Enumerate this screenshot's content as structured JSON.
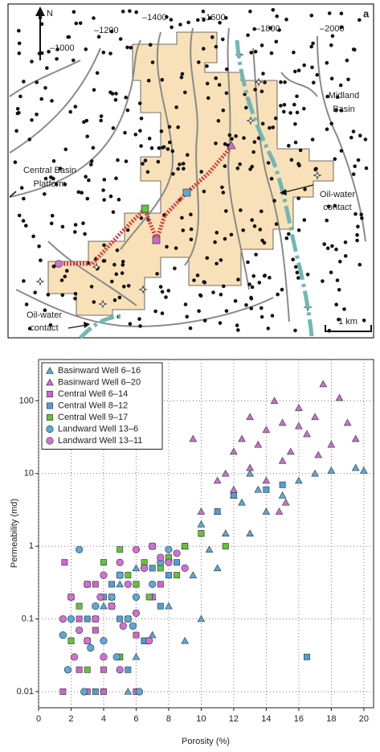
{
  "map": {
    "panel": "a",
    "north": "N",
    "contours": [
      "–1000",
      "–1200",
      "–1400",
      "–1600",
      "–1800",
      "–2000"
    ],
    "midland_basin": [
      "Midland",
      "Basin"
    ],
    "central_basin_platform": [
      "Central Basin",
      "Platform"
    ],
    "oil_water_contact_right": [
      "Oil-water",
      "contact"
    ],
    "oil_water_contact_left": [
      "Oil-water",
      "contact"
    ],
    "scale": "1 km"
  },
  "chart_data": {
    "type": "scatter",
    "panel": "b",
    "x_label": "Porosity (%)",
    "y_label": "Permeability (md)",
    "xlim": [
      0,
      20.6
    ],
    "ylim": [
      0.006,
      370
    ],
    "log_y": true,
    "grid": true,
    "legend": "upper left",
    "xticks": [
      0,
      2,
      4,
      6,
      8,
      10,
      12,
      14,
      16,
      18,
      20
    ],
    "yticks": [
      0.01,
      0.1,
      1,
      10,
      100
    ],
    "series": [
      {
        "name": "Basinward Well 6–16",
        "color": "#5aa8d6",
        "marker": "triangle",
        "x": [
          4,
          5,
          6,
          7,
          8,
          9,
          9.5,
          10,
          10.5,
          11,
          11.5,
          12,
          12.5,
          13,
          13.5,
          14,
          15,
          16,
          17,
          18,
          19.5,
          20,
          8,
          9,
          10,
          6,
          7,
          5.5,
          11,
          13
        ],
        "values": [
          0.15,
          0.3,
          0.5,
          0.2,
          0.7,
          1,
          0.4,
          2,
          0.9,
          3,
          1.5,
          5,
          4,
          10,
          6,
          3,
          5,
          8,
          10,
          11,
          12,
          11,
          0.15,
          0.05,
          0.1,
          0.03,
          0.06,
          0.01,
          0.5,
          1.5
        ]
      },
      {
        "name": "Basinward Well 6–20",
        "color": "#c96fcc",
        "marker": "triangle",
        "x": [
          10,
          11,
          12,
          12.5,
          13,
          13.5,
          14,
          14.5,
          15,
          15.5,
          16,
          16.5,
          17,
          17.5,
          18,
          18.5,
          19,
          19.5,
          13,
          14,
          15,
          16,
          12,
          11.5,
          9.5,
          14.8,
          17.2,
          15.2
        ],
        "values": [
          3,
          8,
          20,
          30,
          60,
          25,
          40,
          100,
          50,
          20,
          80,
          35,
          60,
          170,
          25,
          110,
          50,
          30,
          12,
          8,
          15,
          45,
          6,
          10,
          30,
          3,
          18,
          4
        ]
      },
      {
        "name": "Central Well 6–14",
        "color": "#cc66cc",
        "marker": "square",
        "x": [
          1.6,
          2,
          2.5,
          3,
          3.5,
          4,
          4.5,
          5,
          5.5,
          6,
          6.5,
          7,
          3,
          4,
          5,
          2.5,
          3.5,
          1.5,
          6,
          7.5
        ],
        "values": [
          0.6,
          0.2,
          0.1,
          0.05,
          0.3,
          0.02,
          0.15,
          0.4,
          0.1,
          0.01,
          0.05,
          0.2,
          0.01,
          0.01,
          0.03,
          0.02,
          0.07,
          0.01,
          0.06,
          0.3
        ]
      },
      {
        "name": "Central Well 8–12",
        "color": "#4f9fd3",
        "marker": "square",
        "x": [
          2,
          3,
          4,
          5,
          6,
          7,
          8,
          9,
          10,
          11,
          12,
          14,
          15,
          16.5,
          3.5,
          5.5,
          7.5,
          6.5,
          4.5,
          8.5
        ],
        "values": [
          0.05,
          0.1,
          0.2,
          0.1,
          0.3,
          0.5,
          0.4,
          1,
          1.5,
          3,
          5,
          6,
          7,
          0.03,
          0.01,
          0.02,
          0.15,
          0.05,
          0.3,
          0.6
        ]
      },
      {
        "name": "Central Well 9–17",
        "color": "#66c23a",
        "marker": "square",
        "x": [
          2,
          2.5,
          3,
          3.5,
          4,
          4.5,
          5,
          5.5,
          6,
          6.5,
          7,
          7.5,
          8,
          8.5,
          9,
          10,
          11.5,
          3,
          5,
          6.8
        ],
        "values": [
          0.05,
          0.15,
          0.3,
          0.1,
          0.6,
          0.2,
          0.9,
          0.4,
          0.3,
          0.6,
          1,
          0.5,
          0.7,
          0.4,
          1,
          1.5,
          1,
          0.02,
          0.03,
          0.2
        ]
      },
      {
        "name": "Landward Well 13–6",
        "color": "#5aaad8",
        "marker": "circle",
        "x": [
          1.5,
          2,
          2.5,
          3,
          3.5,
          4,
          4.5,
          5,
          5.5,
          6,
          6.5,
          7,
          2.8,
          3.2,
          1.8,
          4.8,
          5.8,
          6.2,
          7.5,
          8
        ],
        "values": [
          0.06,
          0.1,
          0.9,
          0.3,
          0.15,
          0.05,
          0.2,
          0.4,
          0.1,
          0.2,
          0.5,
          0.3,
          0.01,
          0.04,
          0.02,
          0.03,
          0.08,
          0.01,
          0.6,
          0.9
        ]
      },
      {
        "name": "Landward Well 13–11",
        "color": "#d070d4",
        "marker": "circle",
        "x": [
          1.5,
          2,
          2.5,
          3,
          3.5,
          4,
          4.5,
          5,
          5.5,
          6,
          6.5,
          7,
          7.5,
          8,
          8.5,
          3,
          4,
          5,
          6,
          2.2,
          3.8,
          5.2,
          6.8,
          9
        ],
        "values": [
          0.1,
          0.2,
          0.07,
          0.3,
          0.1,
          0.4,
          0.15,
          0.6,
          0.3,
          0.9,
          0.5,
          1,
          0.7,
          0.6,
          0.8,
          0.05,
          0.03,
          0.02,
          0.12,
          0.03,
          0.2,
          0.08,
          0.05,
          0.5
        ]
      }
    ]
  }
}
